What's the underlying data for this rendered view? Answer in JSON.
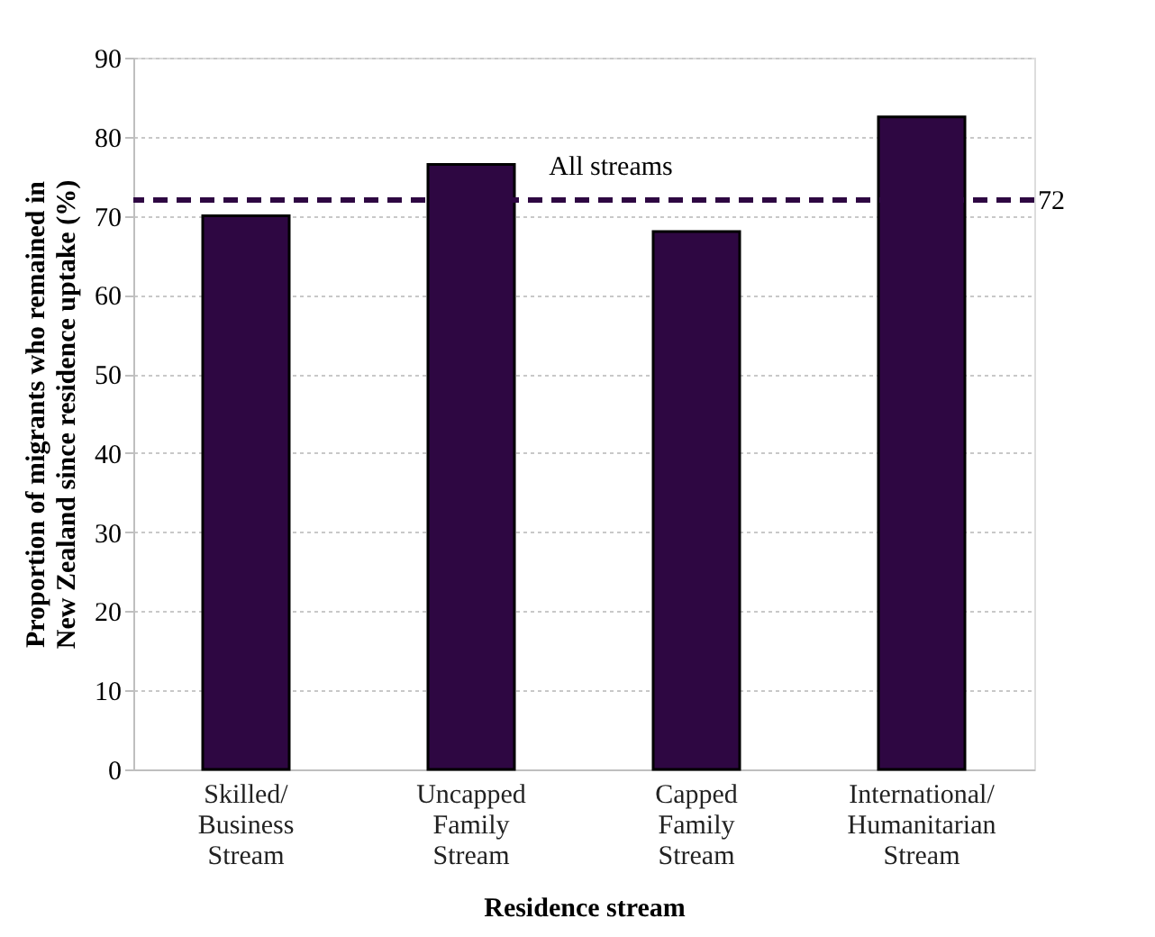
{
  "chart_data": {
    "type": "bar",
    "xlabel": "Residence stream",
    "ylabel": "Proportion of migrants who remained in New Zealand since residence uptake (%)",
    "categories": [
      "Skilled/ Business Stream",
      "Uncapped Family Stream",
      "Capped Family Stream",
      "International/ Humanitarian Stream"
    ],
    "values": [
      70,
      76.5,
      68,
      82.5
    ],
    "color": "#2e0742",
    "ylim": [
      0,
      90
    ],
    "yticks": [
      0,
      10,
      20,
      30,
      40,
      50,
      60,
      70,
      80,
      90
    ],
    "grid": "y",
    "ref_lines": [
      {
        "axis": "y",
        "value": 72,
        "label": "All streams",
        "color": "#2e0742",
        "line_style": "dashed"
      }
    ],
    "annotations": [
      "72"
    ]
  }
}
